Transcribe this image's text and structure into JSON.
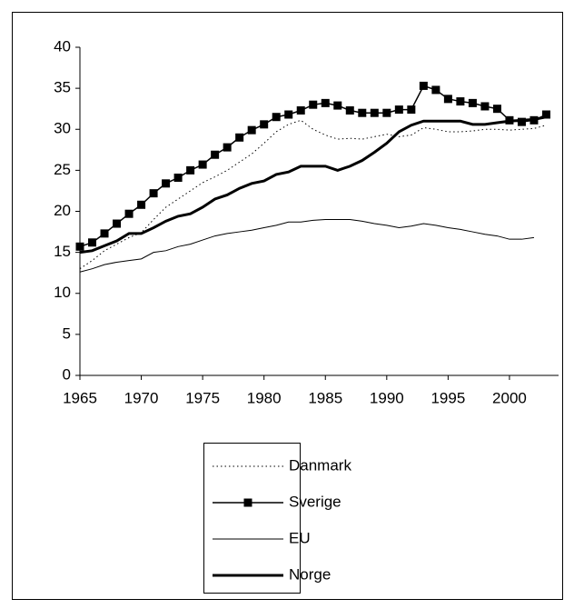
{
  "chart_data": {
    "type": "line",
    "x": [
      1965,
      1966,
      1967,
      1968,
      1969,
      1970,
      1971,
      1972,
      1973,
      1974,
      1975,
      1976,
      1977,
      1978,
      1979,
      1980,
      1981,
      1982,
      1983,
      1984,
      1985,
      1986,
      1987,
      1988,
      1989,
      1990,
      1991,
      1992,
      1993,
      1994,
      1995,
      1996,
      1997,
      1998,
      1999,
      2000,
      2001,
      2002,
      2003
    ],
    "series": [
      {
        "name": "Danmark",
        "color": "#000000",
        "style": "dotted",
        "width": 1,
        "values": [
          13.0,
          14.0,
          15.2,
          16.0,
          16.8,
          17.4,
          19.0,
          20.5,
          21.5,
          22.5,
          23.5,
          24.2,
          25.0,
          26.0,
          27.0,
          28.3,
          29.7,
          30.6,
          31.1,
          30.0,
          29.3,
          28.8,
          28.9,
          28.8,
          29.1,
          29.4,
          29.1,
          29.3,
          30.2,
          30.0,
          29.7,
          29.7,
          29.8,
          30.0,
          30.0,
          29.9,
          30.0,
          30.1,
          30.5
        ]
      },
      {
        "name": "Sverige",
        "color": "#000000",
        "style": "solid",
        "width": 1.5,
        "marker": "square",
        "values": [
          15.7,
          16.2,
          17.3,
          18.5,
          19.7,
          20.8,
          22.2,
          23.4,
          24.1,
          25.0,
          25.7,
          26.9,
          27.8,
          29.0,
          29.9,
          30.6,
          31.5,
          31.8,
          32.3,
          33.0,
          33.2,
          32.9,
          32.3,
          32.0,
          32.0,
          32.0,
          32.4,
          32.4,
          35.3,
          34.8,
          33.7,
          33.4,
          33.2,
          32.8,
          32.5,
          31.1,
          30.9,
          31.1,
          31.8
        ]
      },
      {
        "name": "EU",
        "color": "#000000",
        "style": "solid",
        "width": 1,
        "values": [
          12.6,
          13.0,
          13.5,
          13.8,
          14.0,
          14.2,
          15.0,
          15.2,
          15.7,
          16.0,
          16.5,
          17.0,
          17.3,
          17.5,
          17.7,
          18.0,
          18.3,
          18.7,
          18.7,
          18.9,
          19.0,
          19.0,
          19.0,
          18.8,
          18.5,
          18.3,
          18.0,
          18.2,
          18.5,
          18.3,
          18.0,
          17.8,
          17.5,
          17.2,
          17.0,
          16.6,
          16.6,
          16.8,
          null
        ]
      },
      {
        "name": "Norge",
        "color": "#000000",
        "style": "solid",
        "width": 3,
        "values": [
          15.0,
          15.2,
          15.8,
          16.4,
          17.3,
          17.3,
          18.0,
          18.8,
          19.4,
          19.7,
          20.5,
          21.5,
          22.0,
          22.8,
          23.4,
          23.7,
          24.5,
          24.8,
          25.5,
          25.5,
          25.5,
          25.0,
          25.5,
          26.2,
          27.2,
          28.3,
          29.7,
          30.5,
          31.0,
          31.0,
          31.0,
          31.0,
          30.6,
          30.6,
          30.8,
          31.0,
          31.1,
          31.2,
          31.5
        ]
      }
    ],
    "xlim": [
      1965,
      2004
    ],
    "xticks": [
      1965,
      1970,
      1975,
      1980,
      1985,
      1990,
      1995,
      2000
    ],
    "ylim": [
      0,
      40
    ],
    "yticks": [
      0,
      5,
      10,
      15,
      20,
      25,
      30,
      35,
      40
    ],
    "legend": "bottom"
  }
}
